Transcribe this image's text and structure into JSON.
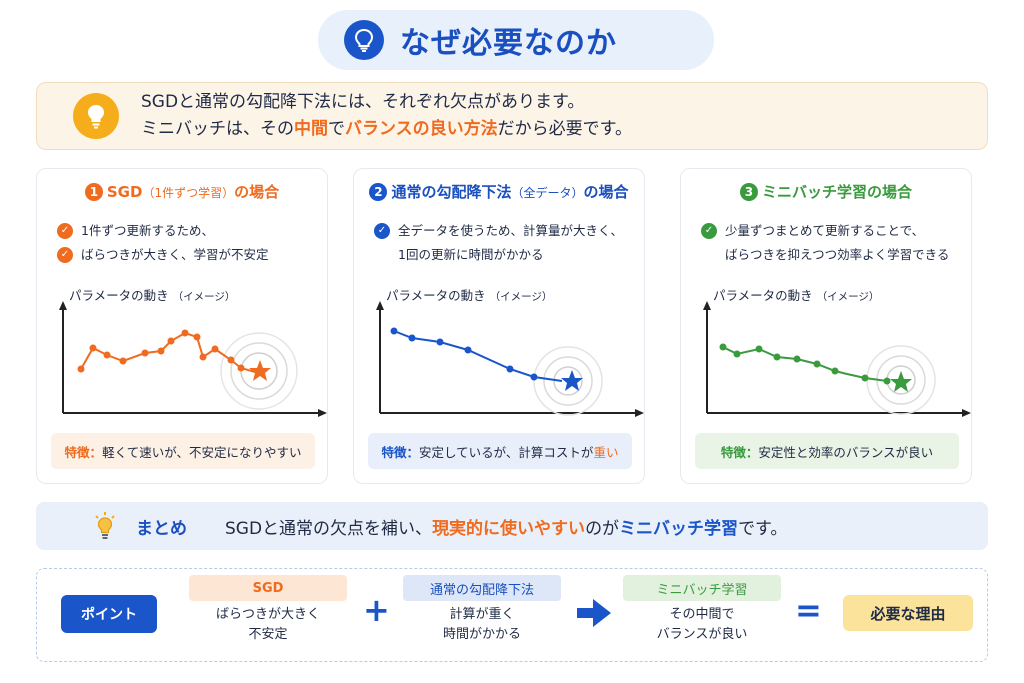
{
  "title": {
    "text": "なぜ必要なのか",
    "icon": "lightbulb-icon"
  },
  "intro": {
    "icon": "lightbulb-icon",
    "line1": "SGDと通常の勾配降下法には、それぞれ欠点があります。",
    "line2_a": "ミニバッチは、その",
    "line2_b": "中間",
    "line2_c": "で",
    "line2_d": "バランスの良い方法",
    "line2_e": "だから必要です。"
  },
  "cards": [
    {
      "num": "1",
      "title": "SGD",
      "sub": "（1件ずつ学習）",
      "suffix": "の場合",
      "color": "#ef6b1f",
      "bg": "#fdf0e4",
      "bullets": [
        "1件ずつ更新するため、",
        "ばらつきが大きく、学習が不安定"
      ],
      "chart_label": "パラメータの動き",
      "chart_sub": "（イメージ）",
      "feature_lead": "特徴：",
      "feature_text": "軽くて速いが、不安定になりやすい"
    },
    {
      "num": "2",
      "title": "通常の勾配降下法",
      "sub": "（全データ）",
      "suffix": "の場合",
      "color": "#1a56c9",
      "bg": "#e8eefa",
      "bullets": [
        "全データを使うため、計算量が大きく、",
        "1回の更新に時間がかかる"
      ],
      "chart_label": "パラメータの動き",
      "chart_sub": "（イメージ）",
      "feature_lead": "特徴：",
      "feature_text": "安定しているが、計算コストが",
      "feature_hl": "重い"
    },
    {
      "num": "3",
      "title": "ミニバッチ学習の場合",
      "sub": "",
      "suffix": "",
      "color": "#3a9a3e",
      "bg": "#e9f3e6",
      "bullets": [
        "少量ずつまとめて更新することで、",
        "ばらつきを抑えつつ効率よく学習できる"
      ],
      "chart_label": "パラメータの動き",
      "chart_sub": "（イメージ）",
      "feature_lead": "特徴：",
      "feature_text": "安定性と効率のバランスが良い"
    }
  ],
  "summary": {
    "label": "まとめ",
    "text_a": "SGDと通常の欠点を補い、",
    "text_b": "現実的に使いやすい",
    "text_c": "のが",
    "text_d": "ミニバッチ学習",
    "text_e": "です。"
  },
  "point": {
    "label": "ポイント",
    "col1_tag": "SGD",
    "col1_l1": "ばらつきが大きく",
    "col1_l2": "不安定",
    "col2_tag": "通常の勾配降下法",
    "col2_l1": "計算が重く",
    "col2_l2": "時間がかかる",
    "col3_tag": "ミニバッチ学習",
    "col3_l1": "その中間で",
    "col3_l2": "バランスが良い",
    "plus": "+",
    "equals": "=",
    "result": "必要な理由"
  }
}
